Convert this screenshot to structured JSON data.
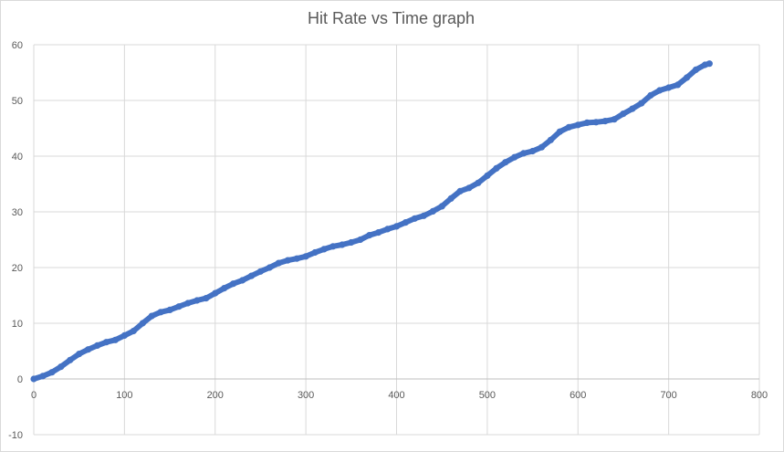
{
  "chart_data": {
    "type": "scatter",
    "title": "Hit Rate vs Time graph",
    "xlabel": "",
    "ylabel": "",
    "xlim": [
      0,
      800
    ],
    "ylim": [
      -10,
      60
    ],
    "x_ticks": [
      0,
      100,
      200,
      300,
      400,
      500,
      600,
      700,
      800
    ],
    "y_ticks": [
      -10,
      0,
      10,
      20,
      30,
      40,
      50,
      60
    ],
    "grid": true,
    "legend": "none",
    "marker_style": "line-with-markers",
    "series": [
      {
        "color": "#4472C4",
        "x": [
          0,
          10,
          20,
          30,
          40,
          50,
          60,
          70,
          80,
          90,
          100,
          110,
          120,
          130,
          140,
          150,
          160,
          170,
          180,
          190,
          200,
          210,
          220,
          230,
          240,
          250,
          260,
          270,
          280,
          290,
          300,
          310,
          320,
          330,
          340,
          350,
          360,
          370,
          380,
          390,
          400,
          410,
          420,
          430,
          440,
          450,
          460,
          470,
          480,
          490,
          500,
          510,
          520,
          530,
          540,
          550,
          560,
          570,
          580,
          590,
          600,
          610,
          620,
          630,
          640,
          650,
          660,
          670,
          680,
          690,
          700,
          710,
          720,
          730,
          740,
          745
        ],
        "y": [
          0,
          0.5,
          1.2,
          2.2,
          3.4,
          4.5,
          5.3,
          6.0,
          6.6,
          7.0,
          7.8,
          8.6,
          10.0,
          11.3,
          12.0,
          12.4,
          13.0,
          13.6,
          14.1,
          14.5,
          15.4,
          16.3,
          17.1,
          17.7,
          18.5,
          19.3,
          20.0,
          20.8,
          21.3,
          21.6,
          22.0,
          22.7,
          23.3,
          23.8,
          24.1,
          24.5,
          25.0,
          25.8,
          26.3,
          26.9,
          27.4,
          28.1,
          28.8,
          29.3,
          30.1,
          31.0,
          32.4,
          33.7,
          34.3,
          35.2,
          36.5,
          37.8,
          38.9,
          39.8,
          40.5,
          40.9,
          41.6,
          42.9,
          44.4,
          45.2,
          45.6,
          46.0,
          46.1,
          46.3,
          46.6,
          47.6,
          48.5,
          49.5,
          50.9,
          51.8,
          52.3,
          52.8,
          54.1,
          55.5,
          56.4,
          56.6
        ]
      }
    ]
  }
}
